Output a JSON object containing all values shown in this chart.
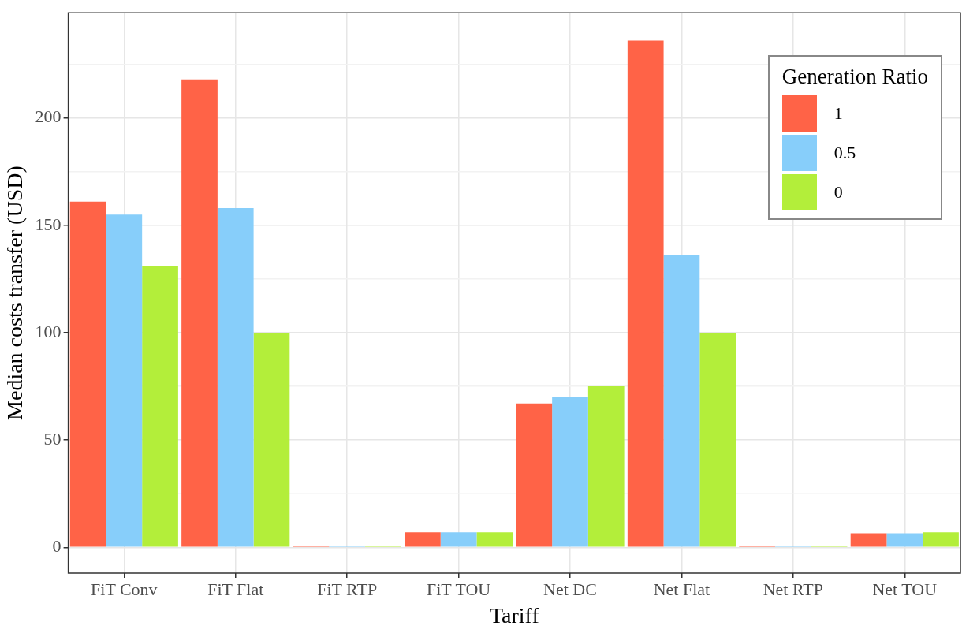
{
  "chart_data": {
    "type": "bar",
    "xlabel": "Tariff",
    "ylabel": "Median costs transfer (USD)",
    "legend_title": "Generation Ratio",
    "categories": [
      "FiT Conv",
      "FiT Flat",
      "FiT RTP",
      "FiT TOU",
      "Net DC",
      "Net Flat",
      "Net RTP",
      "Net TOU"
    ],
    "series": [
      {
        "name": "1",
        "color": "#ff6347",
        "values": [
          161,
          218,
          0.5,
          7,
          67,
          236,
          0.5,
          6.5
        ]
      },
      {
        "name": "0.5",
        "color": "#87cefa",
        "values": [
          155,
          158,
          0.5,
          7,
          70,
          136,
          0.5,
          6.5
        ]
      },
      {
        "name": "0",
        "color": "#b3ee3a",
        "values": [
          131,
          100,
          0.5,
          7,
          75,
          100,
          0.5,
          7
        ]
      }
    ],
    "ylim": [
      -12,
      249
    ],
    "yticks": [
      0,
      {
        "value": 25,
        "label": null
      },
      50,
      {
        "value": 75,
        "label": null
      },
      100,
      {
        "value": 125,
        "label": null
      },
      150,
      {
        "value": 175,
        "label": null
      },
      200,
      {
        "value": 225,
        "label": null
      }
    ],
    "grid": true,
    "legend": "top right"
  }
}
